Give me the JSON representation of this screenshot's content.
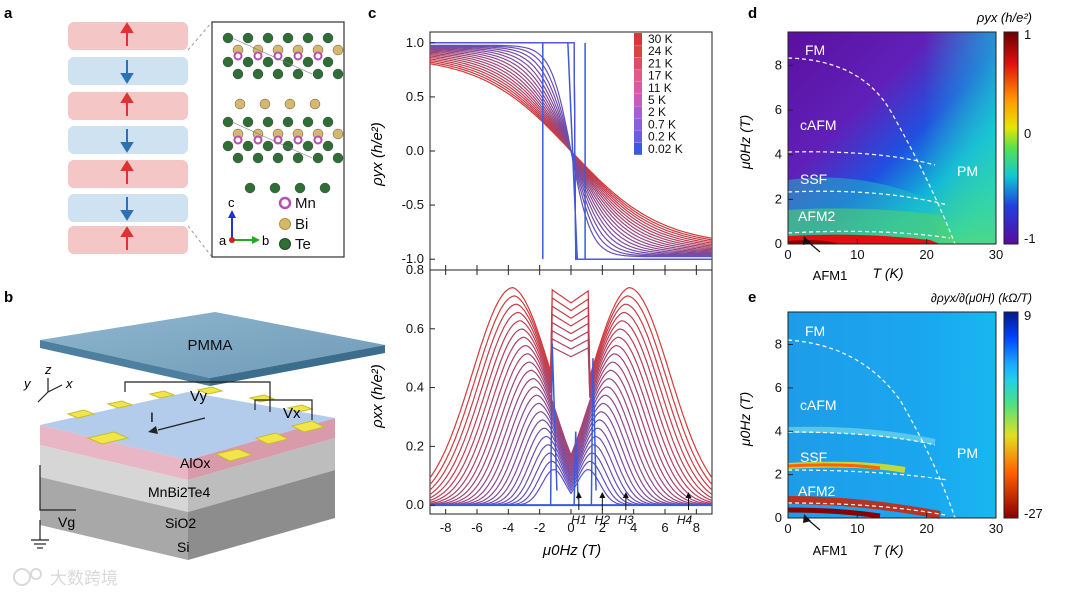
{
  "panels": {
    "a": "a",
    "b": "b",
    "c": "c",
    "d": "d",
    "e": "e"
  },
  "colors": {
    "layer_up": "#f4c6c6",
    "layer_down": "#cfe2f1",
    "arrow_up": "#d33",
    "arrow_down": "#2a72b5",
    "mn": "#b84fb0",
    "bi": "#d6b86c",
    "te": "#2f6e37"
  },
  "panel_a": {
    "layers": [
      "up",
      "down",
      "up",
      "down",
      "up",
      "down",
      "up"
    ],
    "legend": [
      {
        "label": "Mn",
        "color": "#b84fb0"
      },
      {
        "label": "Bi",
        "color": "#d6b86c"
      },
      {
        "label": "Te",
        "color": "#2f6e37"
      }
    ],
    "axes": {
      "c": "c",
      "a": "a",
      "b": "b"
    }
  },
  "panel_b": {
    "pmma": "PMMA",
    "alox": "AlOx",
    "mnbite": "MnBi2Te4",
    "sio2": "SiO2",
    "si": "Si",
    "vy": "Vy",
    "vx": "Vx",
    "vg": "Vg",
    "current": "I",
    "axes": {
      "x": "x",
      "y": "y",
      "z": "z"
    }
  },
  "chart_data": [
    {
      "id": "c-top",
      "type": "line",
      "ylabel": "ρyx (h/e²)",
      "xlim": [
        -9,
        9
      ],
      "ylim": [
        -1.1,
        1.1
      ],
      "yticks": [
        "-1.0",
        "-0.5",
        "0.0",
        "0.5",
        "1.0"
      ],
      "temperatures_K": [
        "30 K",
        "24 K",
        "21 K",
        "17 K",
        "11 K",
        "5 K",
        "2 K",
        "0.7 K",
        "0.2 K",
        "0.02 K"
      ],
      "temperature_colors": [
        "#d23a3a",
        "#d8443f",
        "#dd4d6a",
        "#e05a8a",
        "#d85aa7",
        "#c85bbd",
        "#a85ed0",
        "#8a5fd9",
        "#6a5fde",
        "#3f5ad9"
      ]
    },
    {
      "id": "c-bottom",
      "type": "line",
      "xlabel": "μ0Hz (T)",
      "ylabel": "ρxx (h/e²)",
      "xlim": [
        -9,
        9
      ],
      "ylim": [
        -0.03,
        0.8
      ],
      "xticks": [
        "-8",
        "-6",
        "-4",
        "-2",
        "0",
        "2",
        "4",
        "6",
        "8"
      ],
      "yticks": [
        "0.0",
        "0.2",
        "0.4",
        "0.6",
        "0.8"
      ],
      "annotations": [
        {
          "label": "H1",
          "x": 0.5
        },
        {
          "label": "H2",
          "x": 2.0
        },
        {
          "label": "H3",
          "x": 3.5
        },
        {
          "label": "H4",
          "x": 7.5
        }
      ]
    },
    {
      "id": "d",
      "type": "heatmap",
      "title": "ρyx (h/e²)",
      "xlabel": "T (K)",
      "ylabel": "μ0Hz (T)",
      "xlim": [
        0,
        30
      ],
      "ylim": [
        0,
        9.5
      ],
      "xticks": [
        "0",
        "10",
        "20",
        "30"
      ],
      "yticks": [
        "0",
        "2",
        "4",
        "6",
        "8"
      ],
      "colorbar": [
        "1",
        "0",
        "-1"
      ],
      "regions": [
        "FM",
        "cAFM",
        "SSF",
        "AFM2",
        "PM"
      ],
      "arrow_label": "AFM1"
    },
    {
      "id": "e",
      "type": "heatmap",
      "title": "∂ρyx/∂(μ0H) (kΩ/T)",
      "xlabel": "T (K)",
      "ylabel": "μ0Hz (T)",
      "xlim": [
        0,
        30
      ],
      "ylim": [
        0,
        9.5
      ],
      "xticks": [
        "0",
        "10",
        "20",
        "30"
      ],
      "yticks": [
        "0",
        "2",
        "4",
        "6",
        "8"
      ],
      "colorbar": [
        "9",
        "-27"
      ],
      "regions": [
        "FM",
        "cAFM",
        "SSF",
        "AFM2",
        "PM"
      ],
      "arrow_label": "AFM1"
    }
  ],
  "watermark": "大数跨境"
}
